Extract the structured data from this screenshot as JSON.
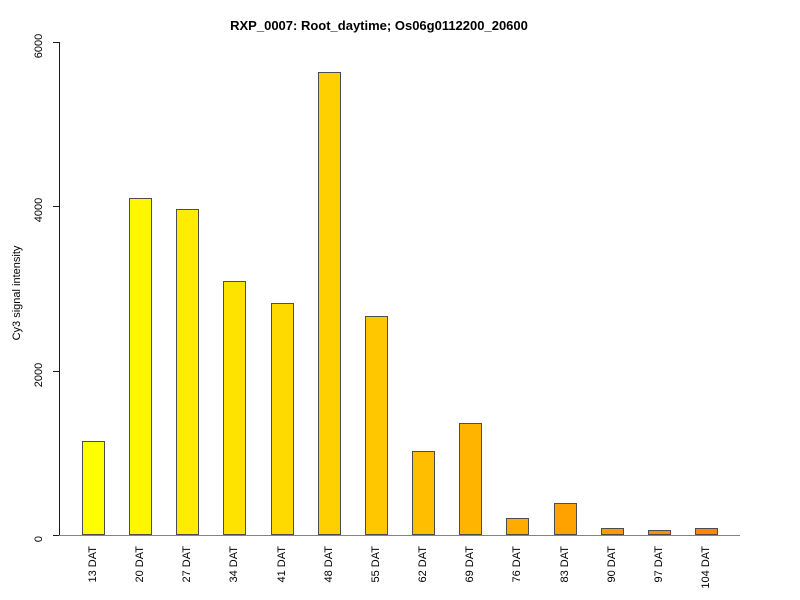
{
  "chart_data": {
    "type": "bar",
    "title": "RXP_0007: Root_daytime; Os06g0112200_20600",
    "xlabel": "",
    "ylabel": "Cy3 signal intensity",
    "ylim": [
      0,
      6000
    ],
    "yticks": [
      0,
      2000,
      4000,
      6000
    ],
    "grid": "off",
    "legend": "none",
    "categories": [
      "13 DAT",
      "20 DAT",
      "27 DAT",
      "34 DAT",
      "41 DAT",
      "48 DAT",
      "55 DAT",
      "62 DAT",
      "69 DAT",
      "76 DAT",
      "83 DAT",
      "90 DAT",
      "97 DAT",
      "104 DAT"
    ],
    "values": [
      1145,
      4100,
      3970,
      3095,
      2820,
      5640,
      2670,
      1020,
      1360,
      210,
      385,
      80,
      55,
      90
    ],
    "bar_colors": [
      "#FFFF00",
      "#FFF600",
      "#FFEC00",
      "#FFE300",
      "#FFDA00",
      "#FFD000",
      "#FFC700",
      "#FFBE00",
      "#FFB500",
      "#FFAB00",
      "#FFA200",
      "#FF9900",
      "#FF8F00",
      "#FF8600"
    ],
    "bar_border_color": "#4d4d4d",
    "axis_color": "#1a1a1a",
    "baseline_color": "#848484",
    "background_color": "#FFFFFF",
    "text_color": "#000000"
  }
}
